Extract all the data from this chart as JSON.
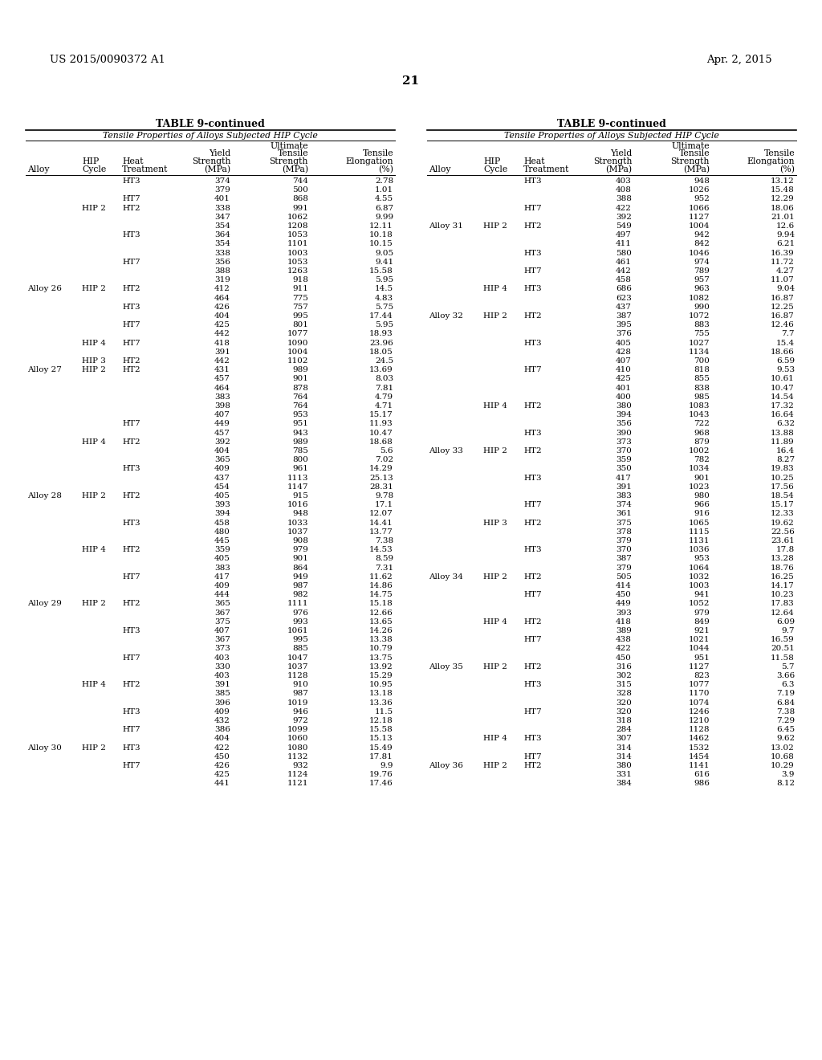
{
  "page_number": "21",
  "patent_left": "US 2015/0090372 A1",
  "patent_right": "Apr. 2, 2015",
  "table_title": "TABLE 9-continued",
  "table_subtitle": "Tensile Properties of Alloys Subjected HIP Cycle",
  "left_table": [
    [
      "",
      "",
      "HT3",
      "374",
      "744",
      "2.78"
    ],
    [
      "",
      "",
      "",
      "379",
      "500",
      "1.01"
    ],
    [
      "",
      "",
      "HT7",
      "401",
      "868",
      "4.55"
    ],
    [
      "",
      "HIP 2",
      "HT2",
      "338",
      "991",
      "6.87"
    ],
    [
      "",
      "",
      "",
      "347",
      "1062",
      "9.99"
    ],
    [
      "",
      "",
      "",
      "354",
      "1208",
      "12.11"
    ],
    [
      "",
      "",
      "HT3",
      "364",
      "1053",
      "10.18"
    ],
    [
      "",
      "",
      "",
      "354",
      "1101",
      "10.15"
    ],
    [
      "",
      "",
      "",
      "338",
      "1003",
      "9.05"
    ],
    [
      "",
      "",
      "HT7",
      "356",
      "1053",
      "9.41"
    ],
    [
      "",
      "",
      "",
      "388",
      "1263",
      "15.58"
    ],
    [
      "",
      "",
      "",
      "319",
      "918",
      "5.95"
    ],
    [
      "Alloy 26",
      "HIP 2",
      "HT2",
      "412",
      "911",
      "14.5"
    ],
    [
      "",
      "",
      "",
      "464",
      "775",
      "4.83"
    ],
    [
      "",
      "",
      "HT3",
      "426",
      "757",
      "5.75"
    ],
    [
      "",
      "",
      "",
      "404",
      "995",
      "17.44"
    ],
    [
      "",
      "",
      "HT7",
      "425",
      "801",
      "5.95"
    ],
    [
      "",
      "",
      "",
      "442",
      "1077",
      "18.93"
    ],
    [
      "",
      "HIP 4",
      "HT7",
      "418",
      "1090",
      "23.96"
    ],
    [
      "",
      "",
      "",
      "391",
      "1004",
      "18.05"
    ],
    [
      "",
      "HIP 3",
      "HT2",
      "442",
      "1102",
      "24.5"
    ],
    [
      "Alloy 27",
      "HIP 2",
      "HT2",
      "431",
      "989",
      "13.69"
    ],
    [
      "",
      "",
      "",
      "457",
      "901",
      "8.03"
    ],
    [
      "",
      "",
      "",
      "464",
      "878",
      "7.81"
    ],
    [
      "",
      "",
      "",
      "383",
      "764",
      "4.79"
    ],
    [
      "",
      "",
      "",
      "398",
      "764",
      "4.71"
    ],
    [
      "",
      "",
      "",
      "407",
      "953",
      "15.17"
    ],
    [
      "",
      "",
      "HT7",
      "449",
      "951",
      "11.93"
    ],
    [
      "",
      "",
      "",
      "457",
      "943",
      "10.47"
    ],
    [
      "",
      "HIP 4",
      "HT2",
      "392",
      "989",
      "18.68"
    ],
    [
      "",
      "",
      "",
      "404",
      "785",
      "5.6"
    ],
    [
      "",
      "",
      "",
      "365",
      "800",
      "7.02"
    ],
    [
      "",
      "",
      "HT3",
      "409",
      "961",
      "14.29"
    ],
    [
      "",
      "",
      "",
      "437",
      "1113",
      "25.13"
    ],
    [
      "",
      "",
      "",
      "454",
      "1147",
      "28.31"
    ],
    [
      "Alloy 28",
      "HIP 2",
      "HT2",
      "405",
      "915",
      "9.78"
    ],
    [
      "",
      "",
      "",
      "393",
      "1016",
      "17.1"
    ],
    [
      "",
      "",
      "",
      "394",
      "948",
      "12.07"
    ],
    [
      "",
      "",
      "HT3",
      "458",
      "1033",
      "14.41"
    ],
    [
      "",
      "",
      "",
      "480",
      "1037",
      "13.77"
    ],
    [
      "",
      "",
      "",
      "445",
      "908",
      "7.38"
    ],
    [
      "",
      "HIP 4",
      "HT2",
      "359",
      "979",
      "14.53"
    ],
    [
      "",
      "",
      "",
      "405",
      "901",
      "8.59"
    ],
    [
      "",
      "",
      "",
      "383",
      "864",
      "7.31"
    ],
    [
      "",
      "",
      "HT7",
      "417",
      "949",
      "11.62"
    ],
    [
      "",
      "",
      "",
      "409",
      "987",
      "14.86"
    ],
    [
      "",
      "",
      "",
      "444",
      "982",
      "14.75"
    ],
    [
      "Alloy 29",
      "HIP 2",
      "HT2",
      "365",
      "1111",
      "15.18"
    ],
    [
      "",
      "",
      "",
      "367",
      "976",
      "12.66"
    ],
    [
      "",
      "",
      "",
      "375",
      "993",
      "13.65"
    ],
    [
      "",
      "",
      "HT3",
      "407",
      "1061",
      "14.26"
    ],
    [
      "",
      "",
      "",
      "367",
      "995",
      "13.38"
    ],
    [
      "",
      "",
      "",
      "373",
      "885",
      "10.79"
    ],
    [
      "",
      "",
      "HT7",
      "403",
      "1047",
      "13.75"
    ],
    [
      "",
      "",
      "",
      "330",
      "1037",
      "13.92"
    ],
    [
      "",
      "",
      "",
      "403",
      "1128",
      "15.29"
    ],
    [
      "",
      "HIP 4",
      "HT2",
      "391",
      "910",
      "10.95"
    ],
    [
      "",
      "",
      "",
      "385",
      "987",
      "13.18"
    ],
    [
      "",
      "",
      "",
      "396",
      "1019",
      "13.36"
    ],
    [
      "",
      "",
      "HT3",
      "409",
      "946",
      "11.5"
    ],
    [
      "",
      "",
      "",
      "432",
      "972",
      "12.18"
    ],
    [
      "",
      "",
      "HT7",
      "386",
      "1099",
      "15.58"
    ],
    [
      "",
      "",
      "",
      "404",
      "1060",
      "15.13"
    ],
    [
      "Alloy 30",
      "HIP 2",
      "HT3",
      "422",
      "1080",
      "15.49"
    ],
    [
      "",
      "",
      "",
      "450",
      "1132",
      "17.81"
    ],
    [
      "",
      "",
      "HT7",
      "426",
      "932",
      "9.9"
    ],
    [
      "",
      "",
      "",
      "425",
      "1124",
      "19.76"
    ],
    [
      "",
      "",
      "",
      "441",
      "1121",
      "17.46"
    ]
  ],
  "right_table": [
    [
      "",
      "",
      "HT3",
      "403",
      "948",
      "13.12"
    ],
    [
      "",
      "",
      "",
      "408",
      "1026",
      "15.48"
    ],
    [
      "",
      "",
      "",
      "388",
      "952",
      "12.29"
    ],
    [
      "",
      "",
      "HT7",
      "422",
      "1066",
      "18.06"
    ],
    [
      "",
      "",
      "",
      "392",
      "1127",
      "21.01"
    ],
    [
      "Alloy 31",
      "HIP 2",
      "HT2",
      "549",
      "1004",
      "12.6"
    ],
    [
      "",
      "",
      "",
      "497",
      "942",
      "9.94"
    ],
    [
      "",
      "",
      "",
      "411",
      "842",
      "6.21"
    ],
    [
      "",
      "",
      "HT3",
      "580",
      "1046",
      "16.39"
    ],
    [
      "",
      "",
      "",
      "461",
      "974",
      "11.72"
    ],
    [
      "",
      "",
      "HT7",
      "442",
      "789",
      "4.27"
    ],
    [
      "",
      "",
      "",
      "458",
      "957",
      "11.07"
    ],
    [
      "",
      "HIP 4",
      "HT3",
      "686",
      "963",
      "9.04"
    ],
    [
      "",
      "",
      "",
      "623",
      "1082",
      "16.87"
    ],
    [
      "",
      "",
      "",
      "437",
      "990",
      "12.25"
    ],
    [
      "Alloy 32",
      "HIP 2",
      "HT2",
      "387",
      "1072",
      "16.87"
    ],
    [
      "",
      "",
      "",
      "395",
      "883",
      "12.46"
    ],
    [
      "",
      "",
      "",
      "376",
      "755",
      "7.7"
    ],
    [
      "",
      "",
      "HT3",
      "405",
      "1027",
      "15.4"
    ],
    [
      "",
      "",
      "",
      "428",
      "1134",
      "18.66"
    ],
    [
      "",
      "",
      "",
      "407",
      "700",
      "6.59"
    ],
    [
      "",
      "",
      "HT7",
      "410",
      "818",
      "9.53"
    ],
    [
      "",
      "",
      "",
      "425",
      "855",
      "10.61"
    ],
    [
      "",
      "",
      "",
      "401",
      "838",
      "10.47"
    ],
    [
      "",
      "",
      "",
      "400",
      "985",
      "14.54"
    ],
    [
      "",
      "HIP 4",
      "HT2",
      "380",
      "1083",
      "17.32"
    ],
    [
      "",
      "",
      "",
      "394",
      "1043",
      "16.64"
    ],
    [
      "",
      "",
      "",
      "356",
      "722",
      "6.32"
    ],
    [
      "",
      "",
      "HT3",
      "390",
      "968",
      "13.88"
    ],
    [
      "",
      "",
      "",
      "373",
      "879",
      "11.89"
    ],
    [
      "Alloy 33",
      "HIP 2",
      "HT2",
      "370",
      "1002",
      "16.4"
    ],
    [
      "",
      "",
      "",
      "359",
      "782",
      "8.27"
    ],
    [
      "",
      "",
      "",
      "350",
      "1034",
      "19.83"
    ],
    [
      "",
      "",
      "HT3",
      "417",
      "901",
      "10.25"
    ],
    [
      "",
      "",
      "",
      "391",
      "1023",
      "17.56"
    ],
    [
      "",
      "",
      "",
      "383",
      "980",
      "18.54"
    ],
    [
      "",
      "",
      "HT7",
      "374",
      "966",
      "15.17"
    ],
    [
      "",
      "",
      "",
      "361",
      "916",
      "12.33"
    ],
    [
      "",
      "HIP 3",
      "HT2",
      "375",
      "1065",
      "19.62"
    ],
    [
      "",
      "",
      "",
      "378",
      "1115",
      "22.56"
    ],
    [
      "",
      "",
      "",
      "379",
      "1131",
      "23.61"
    ],
    [
      "",
      "",
      "HT3",
      "370",
      "1036",
      "17.8"
    ],
    [
      "",
      "",
      "",
      "387",
      "953",
      "13.28"
    ],
    [
      "",
      "",
      "",
      "379",
      "1064",
      "18.76"
    ],
    [
      "Alloy 34",
      "HIP 2",
      "HT2",
      "505",
      "1032",
      "16.25"
    ],
    [
      "",
      "",
      "",
      "414",
      "1003",
      "14.17"
    ],
    [
      "",
      "",
      "HT7",
      "450",
      "941",
      "10.23"
    ],
    [
      "",
      "",
      "",
      "449",
      "1052",
      "17.83"
    ],
    [
      "",
      "",
      "",
      "393",
      "979",
      "12.64"
    ],
    [
      "",
      "HIP 4",
      "HT2",
      "418",
      "849",
      "6.09"
    ],
    [
      "",
      "",
      "",
      "389",
      "921",
      "9.7"
    ],
    [
      "",
      "",
      "HT7",
      "438",
      "1021",
      "16.59"
    ],
    [
      "",
      "",
      "",
      "422",
      "1044",
      "20.51"
    ],
    [
      "",
      "",
      "",
      "450",
      "951",
      "11.58"
    ],
    [
      "Alloy 35",
      "HIP 2",
      "HT2",
      "316",
      "1127",
      "5.7"
    ],
    [
      "",
      "",
      "",
      "302",
      "823",
      "3.66"
    ],
    [
      "",
      "",
      "HT3",
      "315",
      "1077",
      "6.3"
    ],
    [
      "",
      "",
      "",
      "328",
      "1170",
      "7.19"
    ],
    [
      "",
      "",
      "",
      "320",
      "1074",
      "6.84"
    ],
    [
      "",
      "",
      "HT7",
      "320",
      "1246",
      "7.38"
    ],
    [
      "",
      "",
      "",
      "318",
      "1210",
      "7.29"
    ],
    [
      "",
      "",
      "",
      "284",
      "1128",
      "6.45"
    ],
    [
      "",
      "HIP 4",
      "HT3",
      "307",
      "1462",
      "9.62"
    ],
    [
      "",
      "",
      "",
      "314",
      "1532",
      "13.02"
    ],
    [
      "",
      "",
      "HT7",
      "314",
      "1454",
      "10.68"
    ],
    [
      "Alloy 36",
      "HIP 2",
      "HT2",
      "380",
      "1141",
      "10.29"
    ],
    [
      "",
      "",
      "",
      "331",
      "616",
      "3.9"
    ],
    [
      "",
      "",
      "",
      "384",
      "986",
      "8.12"
    ]
  ],
  "bg_color": "#ffffff",
  "text_color": "#000000"
}
